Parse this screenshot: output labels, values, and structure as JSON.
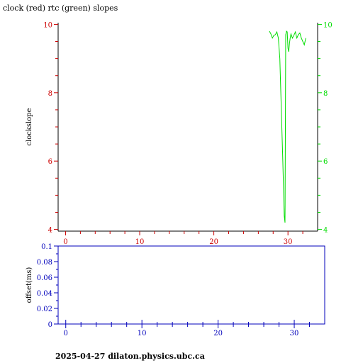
{
  "title": "clock (red) rtc (green) slopes",
  "footer": "2025-04-27  dilaton.physics.ubc.ca",
  "colors": {
    "red": "#cc0000",
    "green": "#00dd00",
    "blue": "#0000bb",
    "axis": "#000000"
  },
  "chart_data": [
    {
      "type": "line",
      "title": "clock (red) rtc (green) slopes",
      "ylabel": "clockslope",
      "xlim": [
        -1,
        34
      ],
      "ylim": [
        3.95,
        10.05
      ],
      "x_ticks": [
        0,
        10,
        20,
        30
      ],
      "y_ticks_left": [
        4,
        6,
        8,
        10
      ],
      "y_ticks_right": [
        4,
        6,
        8,
        10
      ],
      "grid": false,
      "series": [
        {
          "color": "green",
          "x": [
            27.5,
            27.7,
            27.9,
            28.1,
            28.3,
            28.5,
            28.7,
            28.9,
            29.1,
            29.3,
            29.5,
            29.6,
            29.7,
            29.8,
            29.9,
            30.0,
            30.1,
            30.2,
            30.3,
            30.4,
            30.6,
            30.8,
            31.0,
            31.2,
            31.4,
            31.6,
            31.8,
            32.0,
            32.2,
            32.4
          ],
          "values": [
            9.8,
            9.72,
            9.6,
            9.68,
            9.7,
            9.78,
            9.6,
            9.0,
            7.5,
            6.0,
            4.4,
            4.2,
            9.7,
            9.8,
            9.78,
            9.3,
            9.2,
            9.45,
            9.6,
            9.72,
            9.6,
            9.68,
            9.78,
            9.6,
            9.7,
            9.75,
            9.6,
            9.5,
            9.4,
            9.6
          ]
        }
      ]
    },
    {
      "type": "line",
      "ylabel": "offset(ms)",
      "xlim": [
        -1,
        34
      ],
      "ylim": [
        0,
        0.1
      ],
      "x_ticks": [
        0,
        10,
        20,
        30
      ],
      "y_ticks": [
        0,
        0.02,
        0.04,
        0.06,
        0.08,
        0.1
      ],
      "y_tick_labels": [
        "0",
        "0.02",
        "0.04",
        "0.06",
        "0.08",
        "0.1"
      ],
      "grid": false,
      "series": []
    }
  ]
}
